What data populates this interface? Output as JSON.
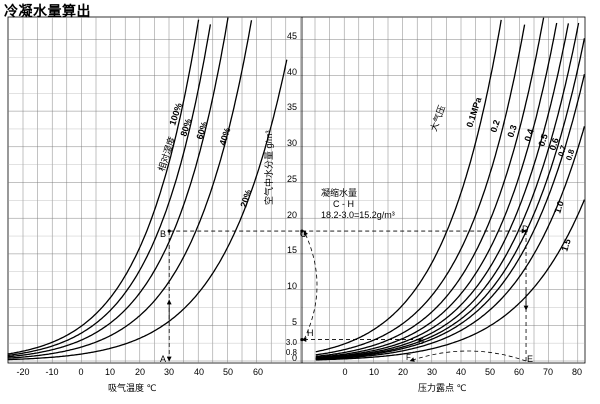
{
  "title": "冷凝水量算出",
  "left_axis": {
    "label": "吸气温度 ℃",
    "ticks": [
      "-20",
      "-10",
      "0",
      "10",
      "20",
      "30",
      "40",
      "50",
      "60"
    ]
  },
  "right_axis": {
    "label": "压力露点 ℃",
    "ticks": [
      "0",
      "10",
      "20",
      "30",
      "40",
      "50",
      "60",
      "70",
      "80"
    ]
  },
  "y_axis": {
    "label": "空气中水分量 g/m³",
    "ticks": [
      "0",
      "5",
      "10",
      "15",
      "20",
      "25",
      "30",
      "35",
      "40",
      "45"
    ],
    "extra_ticks": [
      "0.8",
      "3.0"
    ]
  },
  "humidity_group": {
    "label": "相对湿度",
    "curves": [
      "100%",
      "80%",
      "60%",
      "40%",
      "20%"
    ]
  },
  "pressure_group": {
    "label": "大气压",
    "curves": [
      "0.1MPa",
      "0.2",
      "0.3",
      "0.4",
      "0.5",
      "0.6",
      "0.7",
      "0.8",
      "1.0",
      "1.5"
    ]
  },
  "annotation": {
    "line1": "凝缩水量",
    "line2": "C - H",
    "line3": "18.2-3.0=15.2g/m³"
  },
  "points": [
    "A",
    "B",
    "C",
    "D",
    "E",
    "F",
    "G",
    "H"
  ],
  "chart_data": {
    "type": "line",
    "title": "冷凝水量算出",
    "xlabel_left": "吸气温度 ℃",
    "xlabel_right": "压力露点 ℃",
    "ylabel": "空气中水分量 g/m³",
    "xlim_left": [
      -25,
      65
    ],
    "xlim_right": [
      -10,
      81
    ],
    "ylim": [
      0,
      48
    ],
    "grid": true,
    "left_series": [
      {
        "name": "100%",
        "factor": 1.0
      },
      {
        "name": "80%",
        "factor": 0.8
      },
      {
        "name": "60%",
        "factor": 0.6
      },
      {
        "name": "40%",
        "factor": 0.4
      },
      {
        "name": "20%",
        "factor": 0.2
      }
    ],
    "right_series": [
      {
        "name": "0.1MPa",
        "factor": 0.5
      },
      {
        "name": "0.2",
        "factor": 0.3333
      },
      {
        "name": "0.3",
        "factor": 0.25
      },
      {
        "name": "0.4",
        "factor": 0.2
      },
      {
        "name": "0.5",
        "factor": 0.1667
      },
      {
        "name": "0.6",
        "factor": 0.1429
      },
      {
        "name": "0.7",
        "factor": 0.125
      },
      {
        "name": "0.8",
        "factor": 0.1111
      },
      {
        "name": "1.0",
        "factor": 0.0909
      },
      {
        "name": "1.5",
        "factor": 0.0625
      }
    ],
    "worked_example": {
      "intake_temperature": 30,
      "saturated_water_content": 18.2,
      "pressure_dew_point": 62,
      "water_content_after_compression": 3.0,
      "condensate": 15.2
    }
  }
}
